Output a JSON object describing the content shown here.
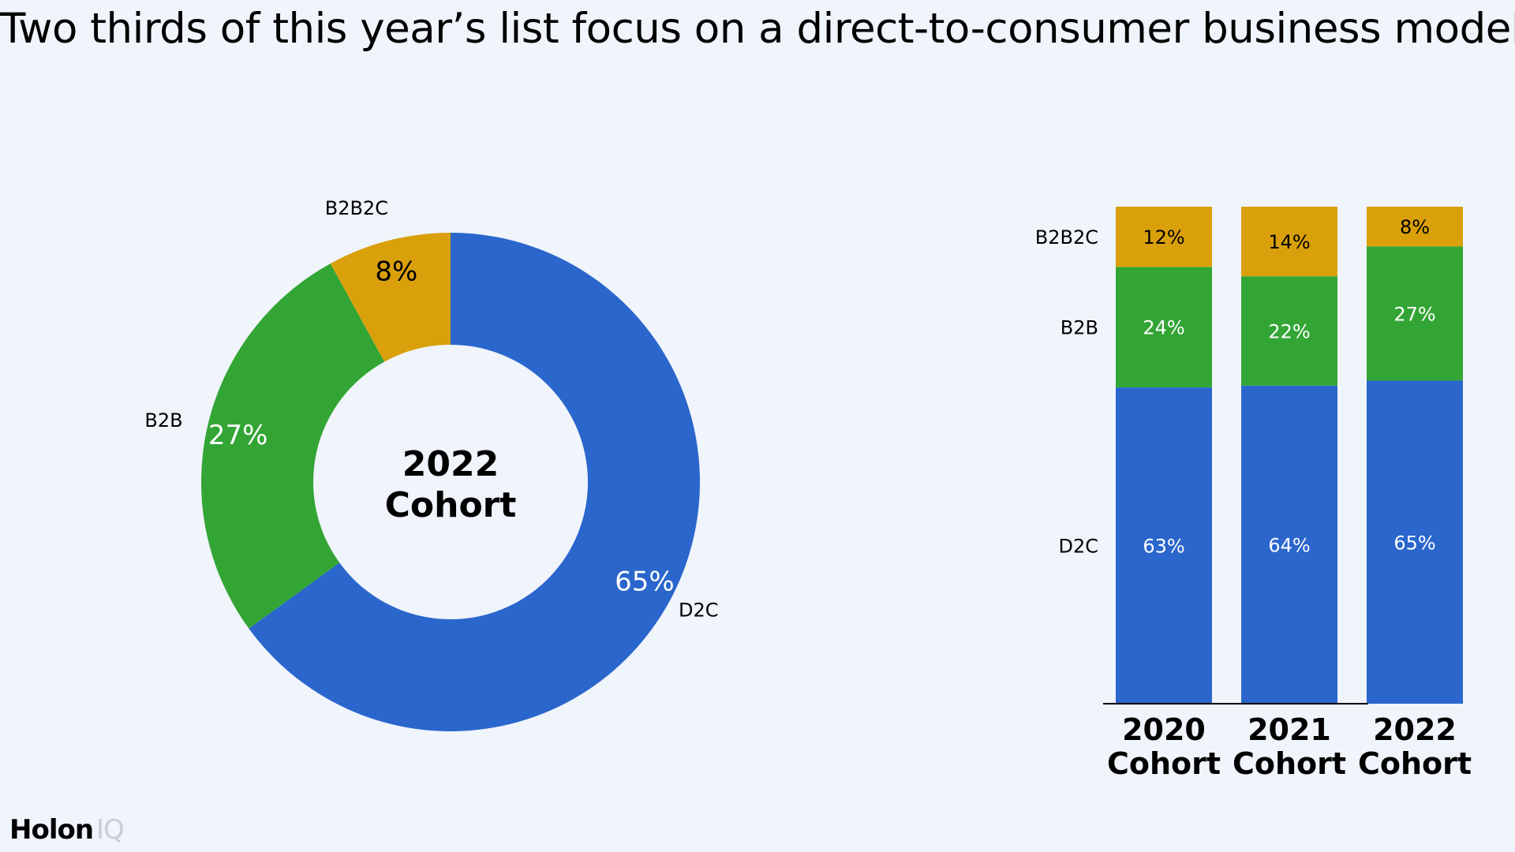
{
  "title": "Two thirds of this year’s list focus on a direct-to-consumer business model",
  "colors": {
    "D2C": "#2a66cc",
    "B2B": "#33a535",
    "B2B2C": "#d9a00b",
    "background": "#f0f4fb"
  },
  "logo": {
    "primary": "Holon",
    "secondary": "IQ"
  },
  "chart_data": [
    {
      "type": "pie",
      "variant": "donut",
      "center_label": [
        "2022",
        "Cohort"
      ],
      "slices": [
        {
          "name": "D2C",
          "value": 65,
          "label": "65%"
        },
        {
          "name": "B2B",
          "value": 27,
          "label": "27%"
        },
        {
          "name": "B2B2C",
          "value": 8,
          "label": "8%"
        }
      ]
    },
    {
      "type": "bar",
      "stacked": true,
      "categories": [
        [
          "2020",
          "Cohort"
        ],
        [
          "2021",
          "Cohort"
        ],
        [
          "2022",
          "Cohort"
        ]
      ],
      "series": [
        {
          "name": "D2C",
          "values": [
            63,
            64,
            65
          ],
          "labels": [
            "63%",
            "64%",
            "65%"
          ]
        },
        {
          "name": "B2B",
          "values": [
            24,
            22,
            27
          ],
          "labels": [
            "24%",
            "22%",
            "27%"
          ]
        },
        {
          "name": "B2B2C",
          "values": [
            12,
            14,
            8
          ],
          "labels": [
            "12%",
            "14%",
            "8%"
          ]
        }
      ],
      "ylim": [
        0,
        100
      ]
    }
  ]
}
